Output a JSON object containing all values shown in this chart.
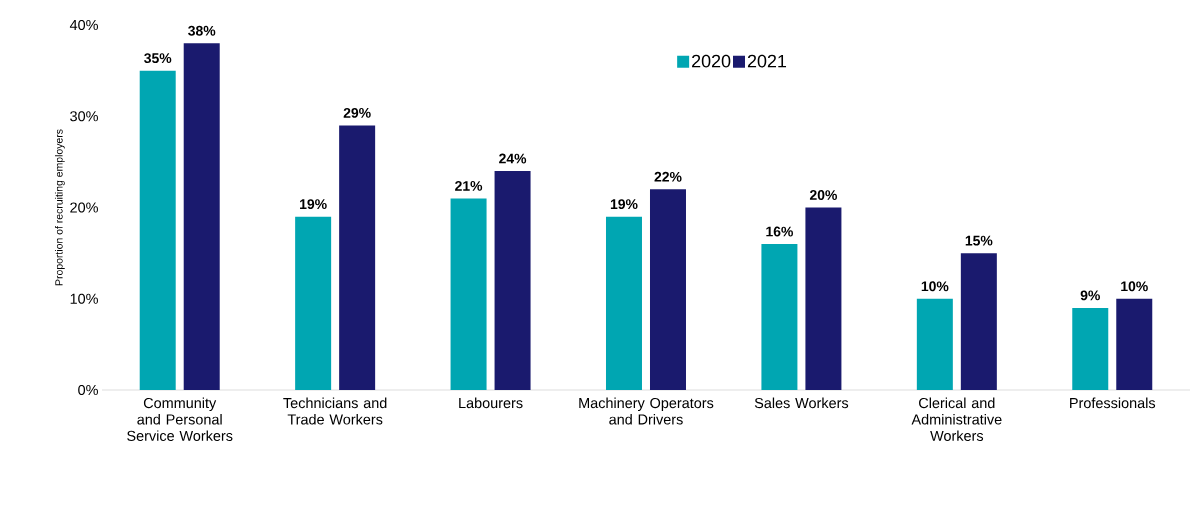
{
  "chart_data": {
    "type": "bar",
    "ylabel": "Proportion of recruiting employers",
    "categories": [
      "Community and Personal Service Workers",
      "Technicians and Trade Workers",
      "Labourers",
      "Machinery Operators and Drivers",
      "Sales Workers",
      "Clerical and Administrative Workers",
      "Professionals"
    ],
    "series": [
      {
        "name": "2020",
        "color": "#00a6b2",
        "values": [
          35,
          19,
          21,
          19,
          16,
          10,
          9
        ],
        "value_labels": [
          "35%",
          "19%",
          "21%",
          "19%",
          "16%",
          "10%",
          "9%"
        ]
      },
      {
        "name": "2021",
        "color": "#1a1a6e",
        "values": [
          38,
          29,
          24,
          22,
          20,
          15,
          10
        ],
        "value_labels": [
          "38%",
          "29%",
          "24%",
          "22%",
          "20%",
          "15%",
          "10%"
        ]
      }
    ],
    "ylim": [
      0,
      40
    ],
    "yticks": [
      {
        "value": 0,
        "label": "0%"
      },
      {
        "value": 10,
        "label": "10%"
      },
      {
        "value": 20,
        "label": "20%"
      },
      {
        "value": 30,
        "label": "30%"
      },
      {
        "value": 40,
        "label": "40%"
      }
    ],
    "legend": "top",
    "grid": false
  }
}
